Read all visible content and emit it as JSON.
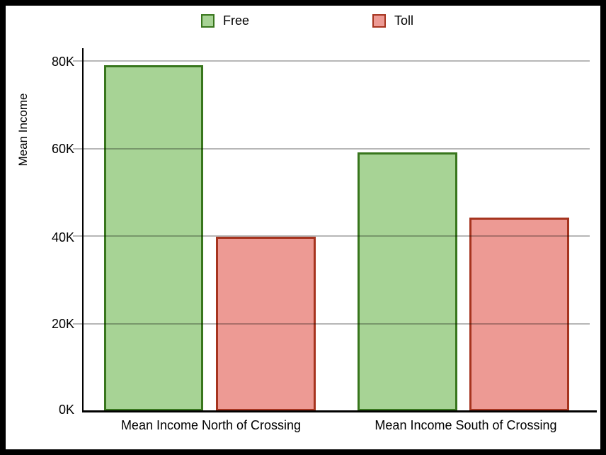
{
  "chart_data": {
    "type": "bar",
    "title": "",
    "ylabel": "Mean Income",
    "xlabel": "",
    "categories": [
      "Mean Income North of Crossing",
      "Mean Income South of Crossing"
    ],
    "series": [
      {
        "name": "Free",
        "values": [
          79000,
          59100
        ],
        "fill": "#A7D395",
        "border": "#38761D"
      },
      {
        "name": "Toll",
        "values": [
          39800,
          44200
        ],
        "fill": "#ED9A94",
        "border": "#A6341F"
      }
    ],
    "ylim": [
      0,
      80000
    ],
    "ytick_labels": [
      "0K",
      "20K",
      "40K",
      "60K",
      "80K"
    ],
    "grid": true,
    "legend_position": "top",
    "colors": {
      "gridline": "#B7B7B7",
      "axis": "#000000",
      "frame": "#000000",
      "background": "#FFFFFF"
    }
  }
}
